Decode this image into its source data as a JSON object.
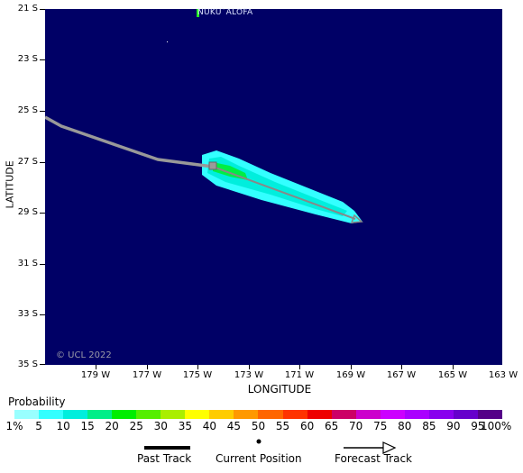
{
  "map": {
    "place_label": "NUKU`ALOFA",
    "credit": "© UCL 2022",
    "x_axis_label": "LONGITUDE",
    "y_axis_label": "LATITUDE",
    "lat_ticks": [
      "21 S",
      "23 S",
      "25 S",
      "27 S",
      "29 S",
      "31 S",
      "33 S",
      "35 S"
    ],
    "lon_ticks": [
      "179 W",
      "177 W",
      "175 W",
      "173 W",
      "171 W",
      "169 W",
      "167 W",
      "165 W",
      "163 W"
    ],
    "ocean_color": "#000066",
    "past_track_color": "#999999"
  },
  "probability_legend": {
    "title": "Probability",
    "labels": [
      "1%",
      "5",
      "10",
      "15",
      "20",
      "25",
      "30",
      "35",
      "40",
      "45",
      "50",
      "55",
      "60",
      "65",
      "70",
      "75",
      "80",
      "85",
      "90",
      "95",
      "100%"
    ],
    "colors": [
      "#99ffff",
      "#33ffff",
      "#00eedd",
      "#00ee88",
      "#00ee00",
      "#55ee00",
      "#aaee00",
      "#ffff00",
      "#ffcc00",
      "#ff9900",
      "#ff6600",
      "#ff3300",
      "#ee0000",
      "#cc0066",
      "#cc00cc",
      "#cc00ff",
      "#aa00ff",
      "#8800ee",
      "#6600cc",
      "#550088"
    ]
  },
  "track_legend": {
    "past_track": "Past Track",
    "current_position": "Current Position",
    "forecast_track": "Forecast Track"
  }
}
